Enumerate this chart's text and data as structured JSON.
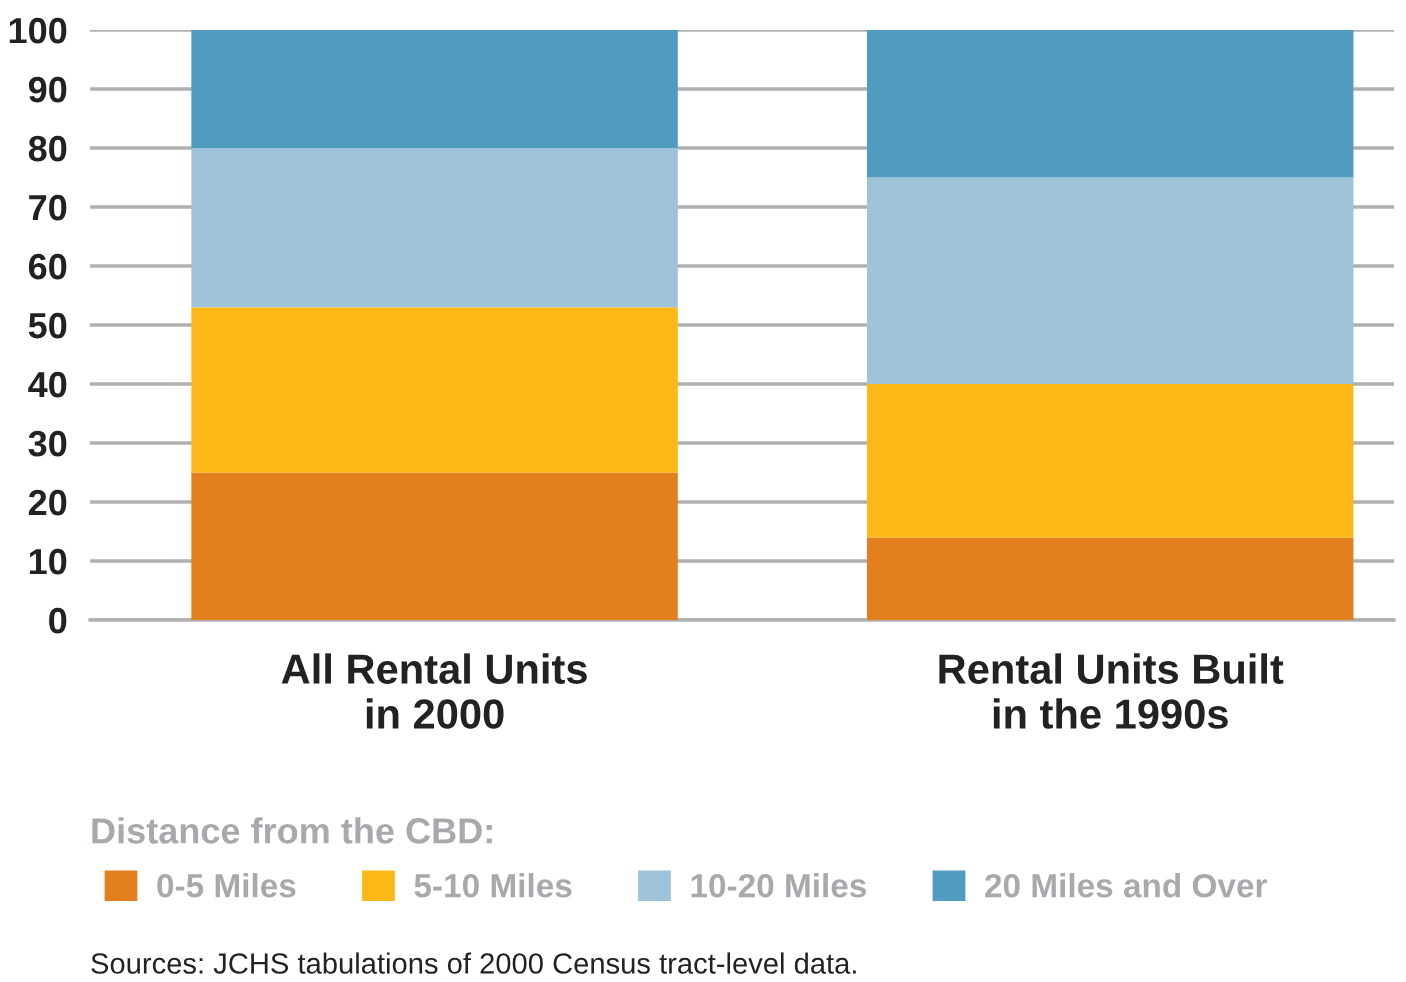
{
  "chart_data": {
    "type": "bar",
    "stacked": true,
    "categories": [
      "All Rental Units\nin 2000",
      "Rental Units Built\nin the 1990s"
    ],
    "series": [
      {
        "name": "0-5 Miles",
        "color": "#e37f1c",
        "values": [
          25,
          14
        ]
      },
      {
        "name": "5-10 Miles",
        "color": "#fbb817",
        "values": [
          28,
          26
        ]
      },
      {
        "name": "10-20 Miles",
        "color": "#9fc3d9",
        "values": [
          27,
          35
        ]
      },
      {
        "name": "20 Miles and Over",
        "color": "#519cc0",
        "values": [
          20,
          25
        ]
      }
    ],
    "ylim": [
      0,
      100
    ],
    "yticks": [
      0,
      10,
      20,
      30,
      40,
      50,
      60,
      70,
      80,
      90,
      100
    ],
    "grid": "y",
    "legend": "bottom",
    "legend_title": "Distance from the CBD:",
    "annotations": [
      "Sources: JCHS tabulations of 2000 Census tract-level data."
    ]
  }
}
